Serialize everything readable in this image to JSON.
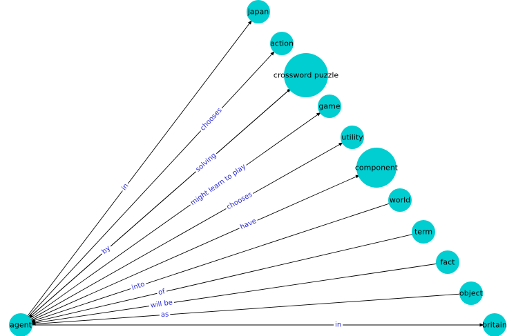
{
  "graph": {
    "colors": {
      "node": "#00ced1",
      "edge": "#000000",
      "edge_label": "#2a2ad6",
      "node_label": "#000000"
    },
    "nodes": [
      {
        "id": "agent",
        "label": "agent",
        "size": "small"
      },
      {
        "id": "japan",
        "label": "japan",
        "size": "small"
      },
      {
        "id": "action",
        "label": "action",
        "size": "small"
      },
      {
        "id": "crossword_puzzle",
        "label": "crossword puzzle",
        "size": "large"
      },
      {
        "id": "game",
        "label": "game",
        "size": "small"
      },
      {
        "id": "utility",
        "label": "utility",
        "size": "small"
      },
      {
        "id": "component",
        "label": "component",
        "size": "medium"
      },
      {
        "id": "world",
        "label": "world",
        "size": "small"
      },
      {
        "id": "term",
        "label": "term",
        "size": "small"
      },
      {
        "id": "fact",
        "label": "fact",
        "size": "small"
      },
      {
        "id": "object",
        "label": "object",
        "size": "small"
      },
      {
        "id": "britain",
        "label": "britain",
        "size": "small"
      }
    ],
    "edges": [
      {
        "source": "agent",
        "target": "japan",
        "label": "in"
      },
      {
        "source": "agent",
        "target": "action",
        "label": "chooses"
      },
      {
        "source": "agent",
        "target": "crossword_puzzle",
        "label": "solving"
      },
      {
        "source": "crossword_puzzle",
        "target": "agent",
        "label": "by"
      },
      {
        "source": "agent",
        "target": "game",
        "label": "might learn to play"
      },
      {
        "source": "agent",
        "target": "utility",
        "label": "chooses"
      },
      {
        "source": "agent",
        "target": "component",
        "label": "have"
      },
      {
        "source": "world",
        "target": "agent",
        "label": "into"
      },
      {
        "source": "term",
        "target": "agent",
        "label": "of"
      },
      {
        "source": "fact",
        "target": "agent",
        "label": "will be"
      },
      {
        "source": "object",
        "target": "agent",
        "label": "as"
      },
      {
        "source": "agent",
        "target": "britain",
        "label": "in"
      }
    ]
  }
}
